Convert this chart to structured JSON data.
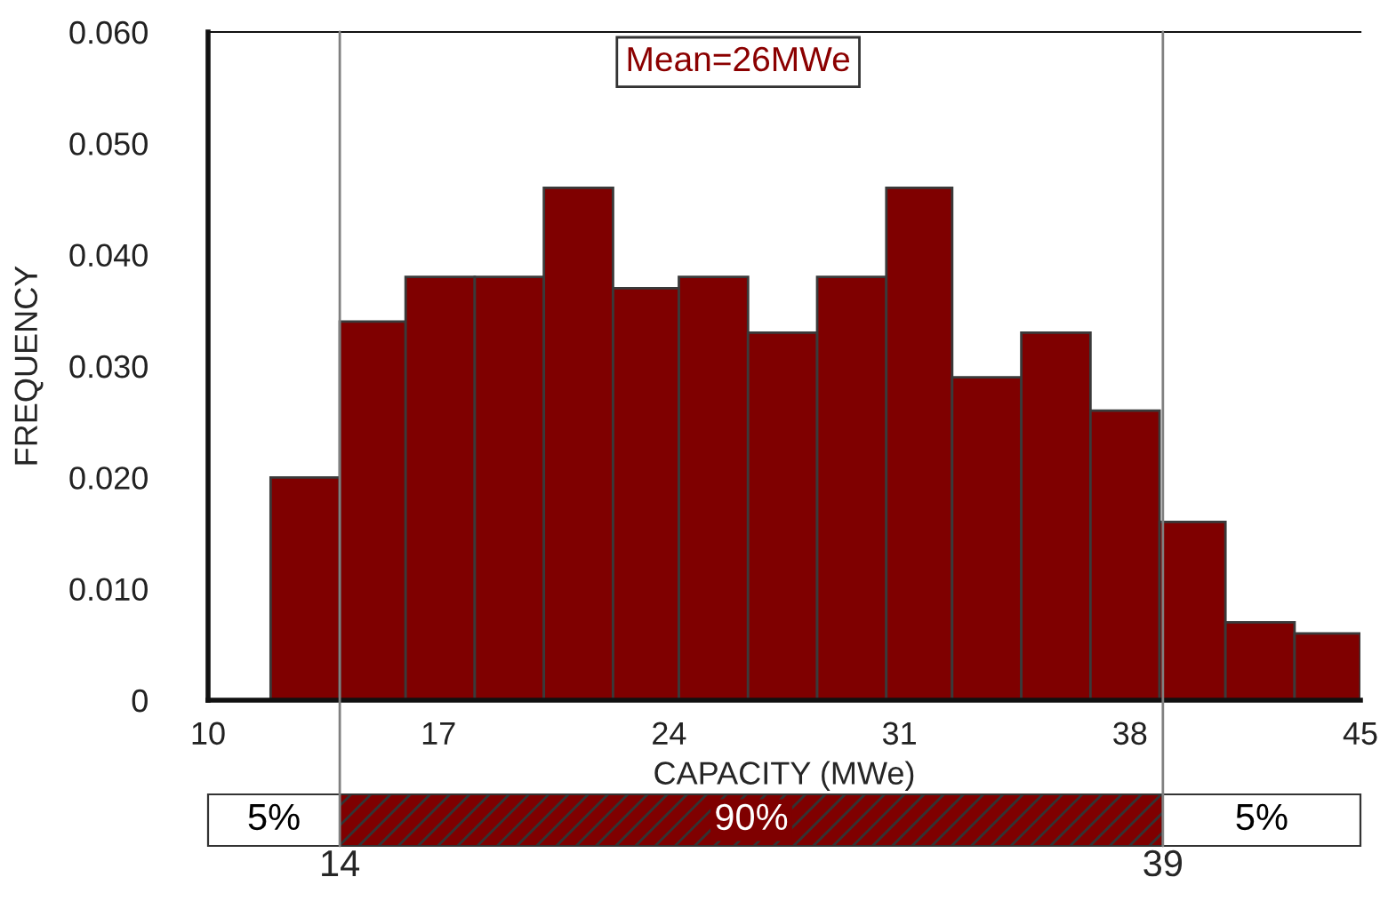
{
  "chart_data": {
    "type": "histogram",
    "xlabel": "CAPACITY (MWe)",
    "ylabel": "FREQUENCY",
    "bins": [
      11.9,
      14.0,
      16.0,
      18.1,
      20.2,
      22.3,
      24.3,
      26.4,
      28.5,
      30.6,
      32.6,
      34.7,
      36.8,
      38.9,
      40.9,
      43.0,
      45.0
    ],
    "values": [
      0.02,
      0.034,
      0.038,
      0.038,
      0.046,
      0.037,
      0.038,
      0.033,
      0.038,
      0.046,
      0.029,
      0.033,
      0.026,
      0.016,
      0.007,
      0.006
    ],
    "color": "#7f0000",
    "xlim": [
      10,
      45
    ],
    "xticks": [
      10,
      17,
      24,
      31,
      38,
      45
    ],
    "ylim": [
      0,
      0.06
    ],
    "yticks": [
      {
        "value": 0,
        "label": "0"
      },
      {
        "value": 0.01,
        "label": "0.010"
      },
      {
        "value": 0.02,
        "label": "0.020"
      },
      {
        "value": 0.03,
        "label": "0.030"
      },
      {
        "value": 0.04,
        "label": "0.040"
      },
      {
        "value": 0.05,
        "label": "0.050"
      },
      {
        "value": 0.06,
        "label": "0.060"
      }
    ],
    "ref_lines": [
      {
        "axis": "x",
        "value": 14,
        "label": "14",
        "color": "#808080"
      },
      {
        "axis": "x",
        "value": 39,
        "label": "39",
        "color": "#808080"
      }
    ],
    "annotations": [
      "Mean=26MWe",
      "5%",
      "90%",
      "5%"
    ],
    "grid": false
  }
}
